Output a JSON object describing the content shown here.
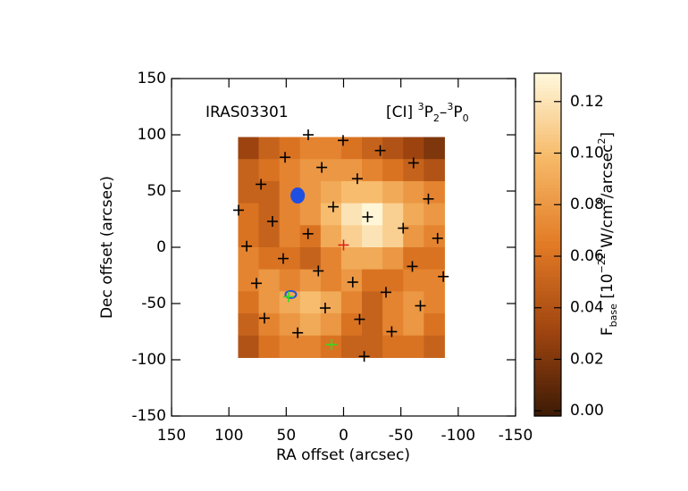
{
  "chart_data": {
    "type": "map",
    "annotations": {
      "source": "IRAS03301",
      "line_parts": [
        "[CI] ",
        "3",
        "P",
        "2",
        "–",
        "3",
        "P",
        "0"
      ]
    },
    "xlabel": "RA offset (arcsec)",
    "ylabel": "Dec offset (arcsec)",
    "xlim": [
      150,
      -150
    ],
    "ylim": [
      -150,
      150
    ],
    "xticks": [
      150,
      100,
      50,
      0,
      -50,
      -100,
      -150
    ],
    "yticks": [
      -150,
      -100,
      -50,
      0,
      50,
      100,
      150
    ],
    "heatmap": {
      "x_edges": [
        92,
        74,
        56,
        38,
        20,
        2,
        -16,
        -34,
        -52,
        -70,
        -88
      ],
      "y_edges": [
        98,
        78.4,
        58.8,
        39.2,
        19.6,
        0,
        -19.6,
        -39.2,
        -58.8,
        -78.4,
        -98
      ],
      "values": [
        [
          0.03,
          0.05,
          0.06,
          0.07,
          0.07,
          0.06,
          0.05,
          0.04,
          0.03,
          0.02
        ],
        [
          0.05,
          0.06,
          0.07,
          0.08,
          0.08,
          0.08,
          0.07,
          0.06,
          0.05,
          0.04
        ],
        [
          0.05,
          0.05,
          0.07,
          0.08,
          0.09,
          0.1,
          0.1,
          0.09,
          0.08,
          0.07
        ],
        [
          0.06,
          0.05,
          0.07,
          0.08,
          0.1,
          0.12,
          0.13,
          0.11,
          0.09,
          0.08
        ],
        [
          0.06,
          0.05,
          0.07,
          0.06,
          0.09,
          0.11,
          0.12,
          0.11,
          0.08,
          0.07
        ],
        [
          0.07,
          0.06,
          0.06,
          0.05,
          0.07,
          0.09,
          0.09,
          0.08,
          0.06,
          0.06
        ],
        [
          0.07,
          0.08,
          0.07,
          0.08,
          0.07,
          0.08,
          0.06,
          0.06,
          0.07,
          0.07
        ],
        [
          0.06,
          0.08,
          0.09,
          0.1,
          0.09,
          0.07,
          0.05,
          0.07,
          0.08,
          0.07
        ],
        [
          0.05,
          0.07,
          0.08,
          0.09,
          0.08,
          0.06,
          0.05,
          0.07,
          0.08,
          0.06
        ],
        [
          0.04,
          0.06,
          0.07,
          0.07,
          0.06,
          0.05,
          0.05,
          0.06,
          0.06,
          0.05
        ]
      ]
    },
    "colormap": [
      "#3b1a05",
      "#a04510",
      "#e27a25",
      "#f6b866",
      "#fff8dc"
    ],
    "clim": [
      -0.002,
      0.131
    ],
    "colorbar_ticks": [
      {
        "value": 0,
        "label": "0.00"
      },
      {
        "value": 0.02,
        "label": "0.02"
      },
      {
        "value": 0.04,
        "label": "0.04"
      },
      {
        "value": 0.06,
        "label": "0.06"
      },
      {
        "value": 0.08,
        "label": "0.08"
      },
      {
        "value": 0.1,
        "label": "0.10"
      },
      {
        "value": 0.12,
        "label": "0.12"
      }
    ],
    "colorbar_label_parts": [
      "F",
      "base",
      " [10",
      "−22",
      " W/cm",
      "2",
      "/arcsec",
      "2",
      "]"
    ],
    "points": [
      {
        "color": "#000000",
        "x": [
          30.8,
          0.4,
          51,
          -32,
          -61,
          19,
          72,
          -12,
          91.6,
          9,
          -21,
          -74,
          62,
          31,
          -52,
          -82,
          84.5,
          52.6,
          22,
          -60,
          -87,
          76,
          -8,
          -37,
          16,
          69,
          -14,
          -67,
          40,
          -42,
          -18
        ],
        "y": [
          100,
          95,
          80,
          86,
          75,
          71,
          56,
          61,
          33,
          36,
          27,
          43,
          23,
          12,
          17,
          8,
          1,
          -10,
          -21,
          -17,
          -26,
          -32,
          -31,
          -40,
          -54,
          -63,
          -64,
          -52,
          -76,
          -75,
          -97
        ]
      },
      {
        "color": "#e02010",
        "x": [
          0
        ],
        "y": [
          2
        ]
      },
      {
        "color": "#30dd20",
        "x": [
          10.5,
          48
        ],
        "y": [
          -86.5,
          -44
        ]
      }
    ],
    "contours": [
      {
        "color": "#1f4fe0",
        "x": 40,
        "y": 46,
        "filled": true
      },
      {
        "color": "#1f4fe0",
        "x": 46,
        "y": -42,
        "filled": false
      }
    ]
  }
}
